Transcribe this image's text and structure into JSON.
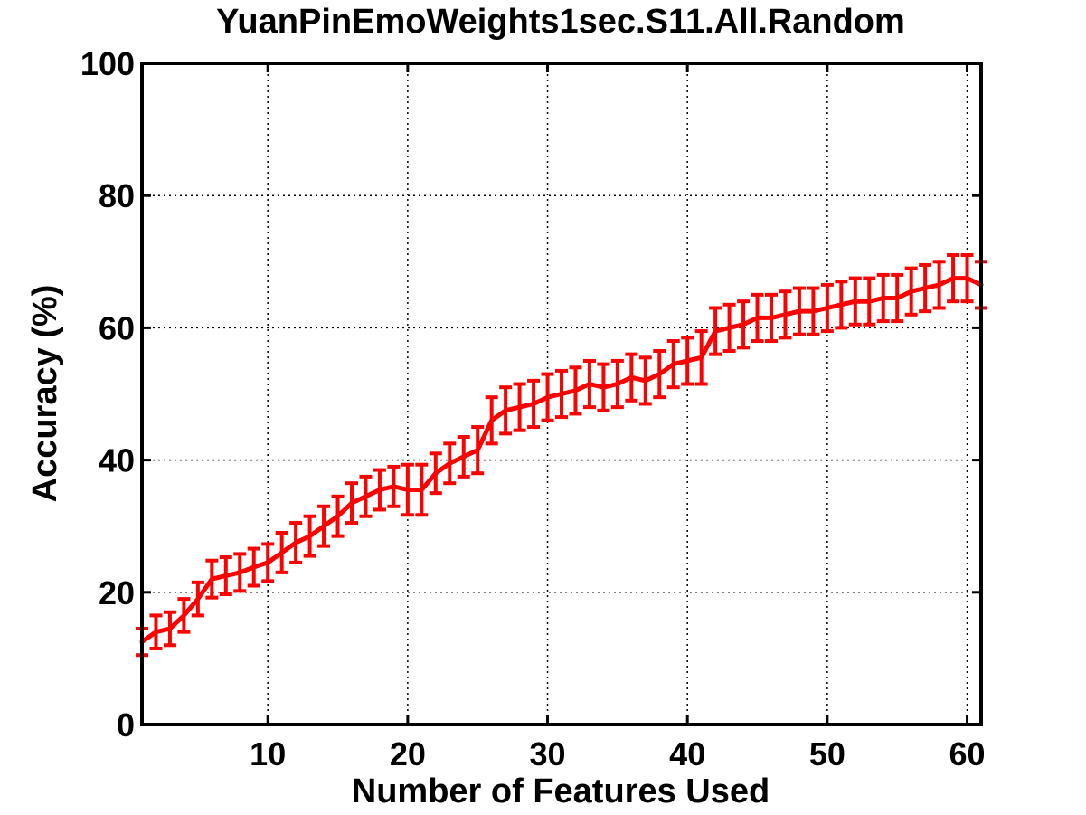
{
  "chart_data": {
    "type": "line",
    "title": "YuanPinEmoWeights1sec.S11.All.Random",
    "xlabel": "Number of Features Used",
    "ylabel": "Accuracy (%)",
    "xlim": [
      1,
      61
    ],
    "ylim": [
      0,
      100
    ],
    "xticks": [
      10,
      20,
      30,
      40,
      50,
      60
    ],
    "yticks": [
      0,
      20,
      40,
      60,
      80,
      100
    ],
    "grid": true,
    "series_color": "#ff0000",
    "series": [
      {
        "x": [
          1,
          2,
          3,
          4,
          5,
          6,
          7,
          8,
          9,
          10,
          11,
          12,
          13,
          14,
          15,
          16,
          17,
          18,
          19,
          20,
          21,
          22,
          23,
          24,
          25,
          26,
          27,
          28,
          29,
          30,
          31,
          32,
          33,
          34,
          35,
          36,
          37,
          38,
          39,
          40,
          41,
          42,
          43,
          44,
          45,
          46,
          47,
          48,
          49,
          50,
          51,
          52,
          53,
          54,
          55,
          56,
          57,
          58,
          59,
          60,
          61
        ],
        "values": [
          12.5,
          14.0,
          14.5,
          16.5,
          19.0,
          22.0,
          22.5,
          23.0,
          23.8,
          24.5,
          26.0,
          27.5,
          28.5,
          30.0,
          31.5,
          33.5,
          34.5,
          35.5,
          36.0,
          35.5,
          35.5,
          38.0,
          39.5,
          40.5,
          41.5,
          46.0,
          47.5,
          48.0,
          48.5,
          49.5,
          50.0,
          50.5,
          51.5,
          51.0,
          51.5,
          52.5,
          52.0,
          53.0,
          54.5,
          55.0,
          55.5,
          59.5,
          60.0,
          60.5,
          61.5,
          61.5,
          62.0,
          62.5,
          62.5,
          63.0,
          63.5,
          64.0,
          64.0,
          64.5,
          64.5,
          65.5,
          66.0,
          66.5,
          67.5,
          67.5,
          66.5
        ],
        "errors": [
          2.0,
          2.5,
          2.5,
          2.5,
          2.5,
          2.8,
          2.8,
          2.8,
          2.8,
          2.8,
          3.0,
          3.0,
          3.0,
          3.0,
          3.0,
          3.0,
          3.0,
          3.0,
          3.0,
          3.8,
          3.8,
          3.0,
          3.0,
          3.0,
          3.5,
          3.5,
          3.5,
          3.5,
          3.5,
          3.5,
          3.5,
          3.5,
          3.5,
          3.5,
          3.5,
          3.5,
          3.5,
          3.5,
          3.5,
          3.5,
          4.0,
          3.5,
          3.5,
          3.5,
          3.5,
          3.5,
          3.5,
          3.5,
          3.5,
          3.5,
          3.5,
          3.5,
          3.5,
          3.5,
          3.5,
          3.5,
          3.5,
          3.5,
          3.5,
          3.5,
          3.5
        ]
      }
    ]
  }
}
